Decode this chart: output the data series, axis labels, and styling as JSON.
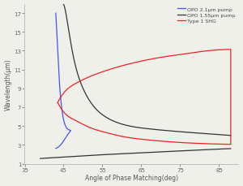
{
  "xlabel": "Angle of Phase Matching(deg)",
  "ylabel": "Wavelength(μm)",
  "xlim": [
    35,
    90
  ],
  "ylim": [
    1,
    18
  ],
  "xticks": [
    35,
    45,
    55,
    65,
    75,
    85
  ],
  "yticks": [
    1,
    3,
    5,
    7,
    9,
    11,
    13,
    15,
    17
  ],
  "legend": [
    {
      "label": "OPO 2.1μm pump",
      "color": "#4455ee"
    },
    {
      "label": "OPO 1.55μm pump",
      "color": "#333333"
    },
    {
      "label": "Type 1 SHG",
      "color": "#ee2222"
    }
  ],
  "bg_color": "#f0f0eb",
  "line_width": 0.9,
  "blue_upper_theta": [
    43.0,
    43.3,
    43.6,
    43.9,
    44.2,
    44.5,
    44.8,
    45.1,
    45.4,
    45.7,
    46.0,
    46.3,
    46.6,
    46.85
  ],
  "blue_upper_wl": [
    17.0,
    14.5,
    12.0,
    9.8,
    8.2,
    7.0,
    6.1,
    5.5,
    5.1,
    4.85,
    4.7,
    4.62,
    4.56,
    4.52
  ],
  "blue_lower_theta": [
    43.0,
    43.3,
    43.6,
    43.9,
    44.2,
    44.5,
    44.8,
    45.1,
    45.4,
    45.7,
    46.0,
    46.3,
    46.6,
    46.85
  ],
  "blue_lower_wl": [
    2.62,
    2.68,
    2.75,
    2.85,
    2.98,
    3.12,
    3.28,
    3.46,
    3.65,
    3.85,
    4.05,
    4.22,
    4.38,
    4.52
  ],
  "black_upper_theta": [
    44.8,
    45.5,
    46.0,
    47.0,
    48.0,
    50.0,
    52.0,
    55.0,
    58.0,
    62.0,
    67.0,
    72.0,
    78.0,
    85.0,
    88.0
  ],
  "black_upper_wl": [
    18.0,
    17.2,
    16.0,
    13.5,
    11.5,
    9.0,
    7.5,
    6.2,
    5.5,
    5.0,
    4.7,
    4.5,
    4.3,
    4.1,
    4.0
  ],
  "black_lower_theta": [
    39.0,
    45.0,
    55.0,
    65.0,
    75.0,
    85.0,
    88.0
  ],
  "black_lower_wl": [
    1.55,
    1.7,
    1.95,
    2.15,
    2.35,
    2.55,
    2.6
  ],
  "red_upper_theta": [
    43.5,
    45.0,
    48.0,
    52.0,
    56.0,
    60.0,
    65.0,
    70.0,
    75.0,
    80.0,
    85.0,
    88.0
  ],
  "red_upper_wl": [
    7.5,
    8.5,
    9.5,
    10.3,
    10.9,
    11.4,
    11.9,
    12.3,
    12.6,
    12.9,
    13.1,
    13.15
  ],
  "red_lower_theta": [
    43.5,
    45.0,
    48.0,
    52.0,
    56.0,
    60.0,
    65.0,
    70.0,
    75.0,
    80.0,
    85.0,
    88.0
  ],
  "red_lower_wl": [
    7.5,
    6.5,
    5.6,
    4.8,
    4.3,
    3.9,
    3.6,
    3.4,
    3.25,
    3.15,
    3.08,
    3.05
  ]
}
